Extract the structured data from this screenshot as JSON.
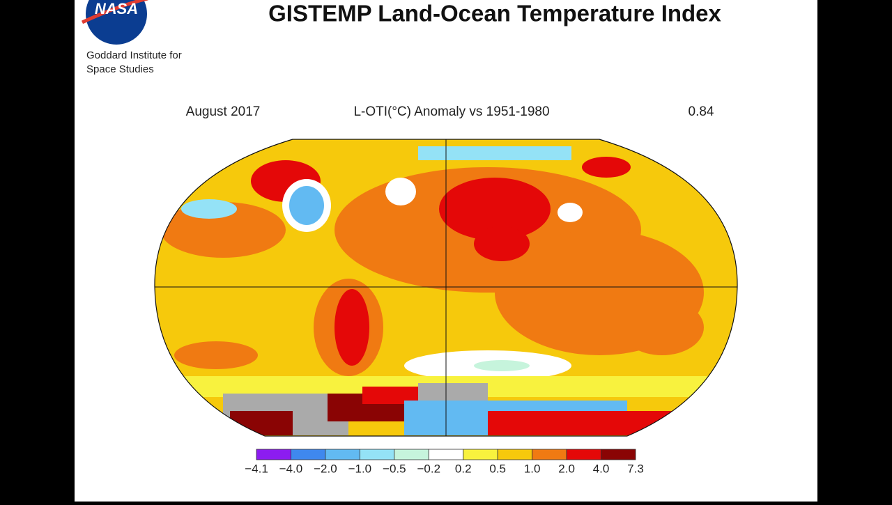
{
  "header": {
    "logo": "NASA",
    "institute_line1": "Goddard Institute for",
    "institute_line2": "Space Studies",
    "title": "GISTEMP Land-Ocean Temperature Index"
  },
  "map": {
    "date": "August 2017",
    "subtitle": "L-OTI(°C) Anomaly vs 1951-1980",
    "mean": "0.84"
  },
  "colorbar": {
    "labels": [
      "−4.1",
      "−4.0",
      "−2.0",
      "−1.0",
      "−0.5",
      "−0.2",
      "0.2",
      "0.5",
      "1.0",
      "2.0",
      "4.0",
      "7.3"
    ],
    "colors": [
      "#8c1cf0",
      "#3f88ee",
      "#62baf2",
      "#94e2f6",
      "#c6f4dc",
      "#ffffff",
      "#f8f23e",
      "#f6c90c",
      "#f07a12",
      "#e40808",
      "#8a0404"
    ]
  }
}
